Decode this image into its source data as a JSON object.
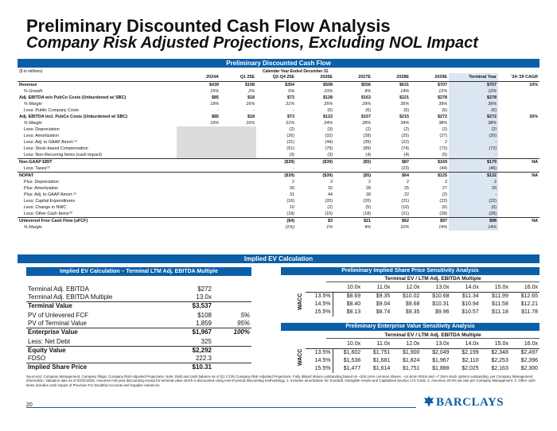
{
  "title": "Preliminary Discounted Cash Flow Analysis",
  "subtitle": "Company Risk Adjusted Projections, Excluding NOL Impact",
  "dcf": {
    "banner": "Preliminary Discounted Cash Flow",
    "units": "($ in millions)",
    "period_label": "Calendar Year Ended December 31",
    "columns": [
      "",
      "2024A",
      "Q1 25E",
      "Q2-Q4 25E",
      "2026E",
      "2027E",
      "2028E",
      "2029E",
      "Terminal Year",
      "'24-'29 CAGR"
    ],
    "rows": [
      {
        "label": "Revenue",
        "values": [
          "$439",
          "$108",
          "$354",
          "$508",
          "$556",
          "$631",
          "$707",
          "$707",
          "10%"
        ],
        "style": "b"
      },
      {
        "label": "% Growth",
        "values": [
          "15%",
          "2%",
          "6%",
          "10%",
          "9%",
          "14%",
          "12%",
          "12%",
          ""
        ],
        "style": "i ind"
      },
      {
        "label": "Adj. EBITDA w/o PubCo Costs (Unburdened w/ SBC)",
        "values": [
          "$85",
          "$18",
          "$73",
          "$128",
          "$163",
          "$221",
          "$278",
          "$278",
          ""
        ],
        "style": "b"
      },
      {
        "label": "% Margin",
        "values": [
          "19%",
          "16%",
          "21%",
          "25%",
          "29%",
          "35%",
          "39%",
          "39%",
          ""
        ],
        "style": "i ind"
      },
      {
        "label": "Less: Public Company Costs",
        "values": [
          "-",
          "-",
          "-",
          "(6)",
          "(6)",
          "(6)",
          "(6)",
          "(6)",
          ""
        ],
        "style": "ind"
      },
      {
        "label": "Adj. EBITDA Incl. PubCo Costs (Unburdened w/ SBC)",
        "values": [
          "$85",
          "$18",
          "$73",
          "$122",
          "$157",
          "$215",
          "$272",
          "$272",
          "26%"
        ],
        "style": "b"
      },
      {
        "label": "% Margin",
        "values": [
          "19%",
          "16%",
          "21%",
          "24%",
          "28%",
          "34%",
          "38%",
          "38%",
          ""
        ],
        "style": "i ind"
      },
      {
        "label": "Less: Depreciation",
        "values": [
          "",
          "",
          "(2)",
          "(3)",
          "(2)",
          "(2)",
          "(2)",
          "(2)",
          ""
        ],
        "style": "ind gray"
      },
      {
        "label": "Less: Amortization",
        "values": [
          "",
          "",
          "(26)",
          "(32)",
          "(28)",
          "(25)",
          "(27)",
          "(20)",
          ""
        ],
        "style": "ind gray"
      },
      {
        "label": "Less: Adj. to GAAP Amort.⁽¹⁾",
        "values": [
          "",
          "",
          "(31)",
          "(44)",
          "(39)",
          "(22)",
          "2",
          "-",
          ""
        ],
        "style": "ind gray"
      },
      {
        "label": "Less: Stock-based Compensation",
        "values": [
          "",
          "",
          "(51)",
          "(79)",
          "(89)",
          "(74)",
          "(72)",
          "(72)",
          ""
        ],
        "style": "ind gray"
      },
      {
        "label": "Less: Non-Recurring Items (cash impact)",
        "values": [
          "",
          "",
          "(3)",
          "(3)",
          "(4)",
          "(4)",
          "(5)",
          "-",
          ""
        ],
        "style": "ind gray"
      },
      {
        "label": "Non-GAAP EBIT",
        "values": [
          "",
          "",
          "($39)",
          "($39)",
          "($5)",
          "$87",
          "$169",
          "$179",
          "NA"
        ],
        "style": "b top"
      },
      {
        "label": "Less: Taxes⁽²⁾",
        "values": [
          "",
          "",
          "-",
          "-",
          "-",
          "(23)",
          "(44)",
          "(46)",
          ""
        ],
        "style": "ind"
      },
      {
        "label": "NOPAT",
        "values": [
          "",
          "",
          "($39)",
          "($39)",
          "($5)",
          "$64",
          "$125",
          "$132",
          "NA"
        ],
        "style": "b top"
      },
      {
        "label": "Plus: Depreciation",
        "values": [
          "",
          "",
          "2",
          "3",
          "2",
          "2",
          "2",
          "2",
          ""
        ],
        "style": "ind"
      },
      {
        "label": "Plus: Amortization",
        "values": [
          "",
          "",
          "26",
          "32",
          "28",
          "25",
          "27",
          "20",
          ""
        ],
        "style": "ind"
      },
      {
        "label": "Plus: Adj. to GAAP Amort.⁽¹⁾",
        "values": [
          "",
          "",
          "31",
          "44",
          "39",
          "22",
          "(2)",
          "-",
          ""
        ],
        "style": "ind"
      },
      {
        "label": "Less: Capital Expenditures",
        "values": [
          "",
          "",
          "(16)",
          "(20)",
          "(20)",
          "(21)",
          "(22)",
          "(22)",
          ""
        ],
        "style": "ind"
      },
      {
        "label": "Less: Change in NWC",
        "values": [
          "",
          "",
          "10",
          "(2)",
          "(5)",
          "(10)",
          "(6)",
          "(6)",
          ""
        ],
        "style": "ind"
      },
      {
        "label": "Less: Other Cash Items⁽³⁾",
        "values": [
          "",
          "",
          "(18)",
          "(15)",
          "(18)",
          "(21)",
          "(28)",
          "(28)",
          ""
        ],
        "style": "ind"
      },
      {
        "label": "Unlevered Free Cash Flow (uFCF)",
        "values": [
          "",
          "",
          "($4)",
          "$3",
          "$21",
          "$62",
          "$97",
          "$98",
          "NA"
        ],
        "style": "b top"
      },
      {
        "label": "% Margin",
        "values": [
          "",
          "",
          "(1%)",
          "1%",
          "4%",
          "10%",
          "14%",
          "14%",
          ""
        ],
        "style": "i ind"
      }
    ]
  },
  "implied_ev": {
    "banner": "Implied EV Calculation",
    "left_title": "Implied EV Calculation – Terminal LTM Adj. EBITDA Multiple",
    "rows": [
      {
        "label": "Terminal Adj. EBITDA",
        "value": "$272",
        "pct": "",
        "style": ""
      },
      {
        "label": "Terminal Adj. EBITDA Multiple",
        "value": "13.0x",
        "pct": "",
        "style": ""
      },
      {
        "label": "Terminal Value",
        "value": "$3,537",
        "pct": "",
        "style": "bld"
      },
      {
        "label": "PV of Unlevered FCF",
        "value": "$108",
        "pct": "5%",
        "style": "pad"
      },
      {
        "label": "PV of Terminal Value",
        "value": "1,859",
        "pct": "95%",
        "style": ""
      },
      {
        "label": "Enterprise Value",
        "value": "$1,967",
        "pct": "100%",
        "style": "bld"
      },
      {
        "label": "Less: Net Debt",
        "value": "325",
        "pct": "",
        "style": "pad"
      },
      {
        "label": "Equity Value",
        "value": "$2,292",
        "pct": "",
        "style": "bld"
      },
      {
        "label": "FDSO",
        "value": "222.3",
        "pct": "",
        "style": ""
      },
      {
        "label": "Implied Share Price",
        "value": "$10.31",
        "pct": "",
        "style": "bld"
      }
    ]
  },
  "share_price_sens": {
    "title": "Preliminary Implied Share Price Sensitivity Analysis",
    "subtitle": "Terminal EV / LTM Adj. EBITDA Multiple",
    "axis": "WACC",
    "multiples": [
      "10.0x",
      "11.0x",
      "12.0x",
      "13.0x",
      "14.0x",
      "15.0x",
      "16.0x"
    ],
    "rows": [
      {
        "wacc": "13.5%",
        "values": [
          "$8.69",
          "$9.35",
          "$10.02",
          "$10.68",
          "$11.34",
          "$11.99",
          "$12.65"
        ]
      },
      {
        "wacc": "14.5%",
        "values": [
          "$8.40",
          "$9.04",
          "$9.68",
          "$10.31",
          "$10.94",
          "$11.58",
          "$12.21"
        ]
      },
      {
        "wacc": "15.5%",
        "values": [
          "$8.13",
          "$8.74",
          "$9.35",
          "$9.96",
          "$10.57",
          "$11.18",
          "$11.78"
        ]
      }
    ]
  },
  "ev_sens": {
    "title": "Preliminary Enterprise Value Sensitivity Analysis",
    "subtitle": "Terminal EV / LTM Adj. EBITDA Multiple",
    "axis": "WACC",
    "multiples": [
      "10.0x",
      "11.0x",
      "12.0x",
      "13.0x",
      "14.0x",
      "15.0x",
      "16.0x"
    ],
    "rows": [
      {
        "wacc": "13.5%",
        "values": [
          "$1,602",
          "$1,751",
          "$1,900",
          "$2,049",
          "$2,199",
          "$2,348",
          "$2,497"
        ]
      },
      {
        "wacc": "14.5%",
        "values": [
          "$1,538",
          "$1,681",
          "$1,824",
          "$1,967",
          "$2,110",
          "$2,253",
          "$2,396"
        ]
      },
      {
        "wacc": "15.5%",
        "values": [
          "$1,477",
          "$1,614",
          "$1,751",
          "$1,888",
          "$2,025",
          "$2,163",
          "$2,300"
        ]
      }
    ]
  },
  "footnote": "Source(s): Company Management, Company filings, Company Risk Adjusted Projections. Note: Debt and cash balance as of Q1 CY25 Company Risk Adjusted Projections. Fully diluted shares outstanding based on ~204.1mm common shares, ~14.6mm RSUs and ~7.3mm stock options outstanding, per Company Management information. Valuation date as of 03/31/2025. Assumes mid-year discounting except for terminal value which is discounted using end-of-period discounting methodology. 1. Includes amortization for Goodwill, Intangible Assets and Capitalized Section 174 Costs. 2. Assumes 25.9% tax rate per Company Management. 3. Other cash items includes cash impact of Provision For Doubtful Accounts and Supplier Advances.",
  "page_number": "20",
  "logo_text": "BARCLAYS",
  "colors": {
    "accent": "#0a5fa8",
    "terminal_bg": "#dce6f2",
    "shade": "#dcdcdc"
  }
}
